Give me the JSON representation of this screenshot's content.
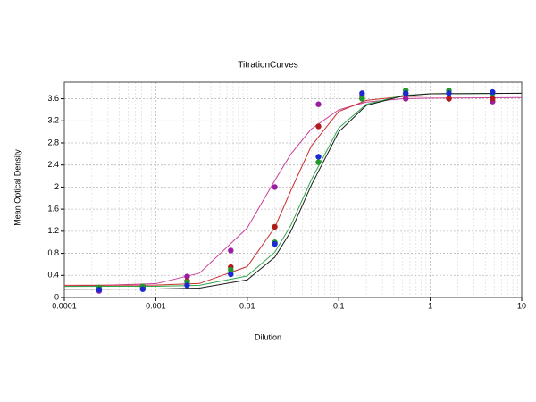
{
  "chart_data": {
    "type": "scatter",
    "title": "TitrationCurves",
    "x_label": "Dilution",
    "y_label": "Mean Optical Density",
    "x_scale": "log",
    "grid": true,
    "xlim": [
      0.0001,
      10
    ],
    "xticks": [
      0.0001,
      0.001,
      0.01,
      0.1,
      1,
      10
    ],
    "ylim": [
      0,
      3.9
    ],
    "yticks": [
      0,
      0.4,
      0.8,
      1.2,
      1.6,
      2,
      2.4,
      2.8,
      3.2,
      3.6
    ],
    "x": [
      0.00024,
      0.00072,
      0.0022,
      0.0066,
      0.02,
      0.06,
      0.18,
      0.54,
      1.6,
      4.8
    ],
    "curve_x": [
      0.0001,
      0.001,
      0.003,
      0.01,
      0.02,
      0.03,
      0.05,
      0.1,
      0.2,
      0.5,
      1,
      10
    ],
    "series": [
      {
        "color": "#9a1fa0",
        "curve_color": "#c8409c",
        "values": [
          0.12,
          0.18,
          0.38,
          0.85,
          2.0,
          3.5,
          3.6,
          3.6,
          3.6,
          3.55
        ],
        "curve": [
          0.2,
          0.25,
          0.44,
          1.26,
          2.12,
          2.6,
          3.05,
          3.4,
          3.54,
          3.6,
          3.61,
          3.62
        ]
      },
      {
        "color": "#b01c1c",
        "curve_color": "#c83030",
        "values": [
          0.15,
          0.2,
          0.3,
          0.55,
          1.28,
          3.1,
          3.65,
          3.7,
          3.6,
          3.6
        ],
        "curve": [
          0.22,
          0.224,
          0.254,
          0.56,
          1.27,
          1.94,
          2.74,
          3.37,
          3.57,
          3.64,
          3.65,
          3.65
        ]
      },
      {
        "color": "#1f9a2a",
        "curve_color": "#2ea84a",
        "values": [
          0.18,
          0.2,
          0.28,
          0.5,
          1.0,
          2.45,
          3.6,
          3.75,
          3.75,
          3.7
        ],
        "curve": [
          0.2,
          0.203,
          0.22,
          0.39,
          0.82,
          1.31,
          2.13,
          3.07,
          3.5,
          3.66,
          3.69,
          3.7
        ]
      },
      {
        "color": "#1a2ad0",
        "curve_color": "#1a1a1a",
        "values": [
          0.14,
          0.15,
          0.22,
          0.42,
          0.97,
          2.55,
          3.7,
          3.7,
          3.7,
          3.72
        ],
        "curve": [
          0.15,
          0.153,
          0.17,
          0.32,
          0.73,
          1.2,
          2.03,
          3.0,
          3.48,
          3.65,
          3.69,
          3.7
        ]
      }
    ]
  }
}
